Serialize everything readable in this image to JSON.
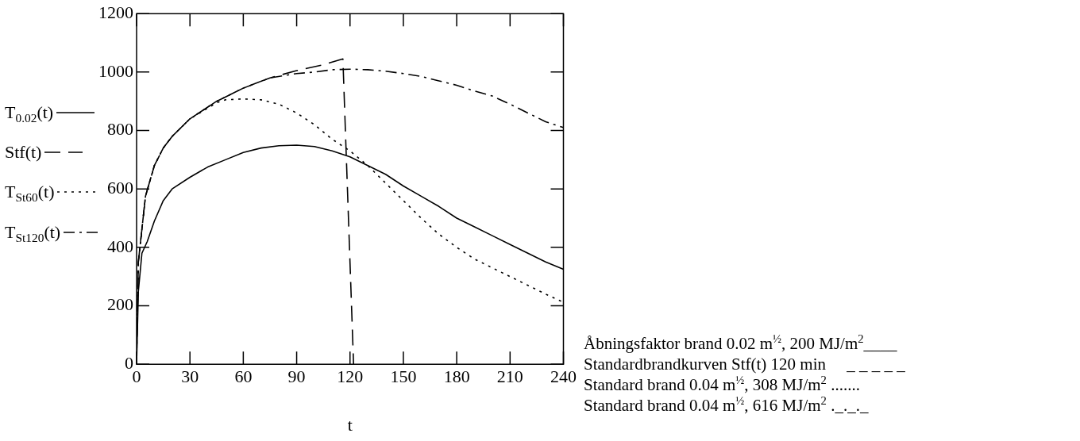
{
  "chart_data": {
    "type": "line",
    "xlabel": "t",
    "xlim": [
      0,
      240
    ],
    "xticks": [
      0,
      30,
      60,
      90,
      120,
      150,
      180,
      210,
      240
    ],
    "ylim": [
      0,
      1200
    ],
    "yticks": [
      0,
      200,
      400,
      600,
      800,
      1000,
      1200
    ],
    "grid": false,
    "legend": "left",
    "marker": "none",
    "series": [
      {
        "name": "T$_{0.02}$(t)",
        "color": "#000000",
        "line_style": "solid",
        "x": [
          0,
          1,
          3,
          6,
          10,
          15,
          20,
          30,
          40,
          50,
          60,
          70,
          80,
          90,
          100,
          110,
          120,
          130,
          140,
          150,
          160,
          170,
          180,
          190,
          200,
          210,
          220,
          230,
          240
        ],
        "values": [
          0,
          250,
          380,
          420,
          490,
          560,
          600,
          640,
          675,
          700,
          725,
          740,
          748,
          750,
          745,
          730,
          710,
          680,
          650,
          610,
          575,
          540,
          500,
          470,
          440,
          410,
          380,
          350,
          325
        ]
      },
      {
        "name": "Stf(t)",
        "color": "#000000",
        "line_style": "dashed",
        "x": [
          0,
          1,
          5,
          10,
          15,
          20,
          30,
          45,
          60,
          75,
          90,
          105,
          116,
          122
        ],
        "values": [
          20,
          350,
          575,
          680,
          740,
          780,
          840,
          900,
          945,
          980,
          1005,
          1025,
          1045,
          0
        ]
      },
      {
        "name": "T$_{St60}$(t)",
        "color": "#000000",
        "line_style": "dotted",
        "x": [
          0,
          1,
          5,
          10,
          15,
          20,
          30,
          45,
          50,
          60,
          70,
          80,
          90,
          100,
          110,
          120,
          130,
          140,
          150,
          160,
          170,
          180,
          190,
          200,
          210,
          220,
          230,
          240
        ],
        "values": [
          20,
          350,
          575,
          680,
          740,
          780,
          840,
          895,
          905,
          908,
          905,
          890,
          860,
          820,
          770,
          730,
          680,
          620,
          560,
          500,
          445,
          400,
          360,
          330,
          300,
          270,
          240,
          212
        ]
      },
      {
        "name": "T$_{St120}$(t)",
        "color": "#000000",
        "line_style": "dashdot",
        "x": [
          0,
          1,
          5,
          10,
          15,
          20,
          30,
          45,
          60,
          75,
          90,
          100,
          110,
          120,
          130,
          140,
          150,
          160,
          170,
          180,
          190,
          200,
          210,
          220,
          230,
          240
        ],
        "values": [
          20,
          350,
          575,
          680,
          740,
          780,
          840,
          900,
          945,
          980,
          995,
          1000,
          1008,
          1010,
          1008,
          1003,
          995,
          985,
          970,
          955,
          935,
          918,
          890,
          860,
          830,
          810
        ]
      }
    ],
    "annotations": [
      "Åbningsfaktor brand 0.02 m$^{½}$, 200 MJ/m$^{2}$____",
      "Standardbrandkurven Stf(t) 120 min     _ _ _ _ _",
      "Standard brand 0.04 m$^{½}$, 308 MJ/m$^{2}$ .......",
      "Standard brand 0.04 m$^{½}$, 616 MJ/m$^{2}$ ._._._"
    ]
  }
}
